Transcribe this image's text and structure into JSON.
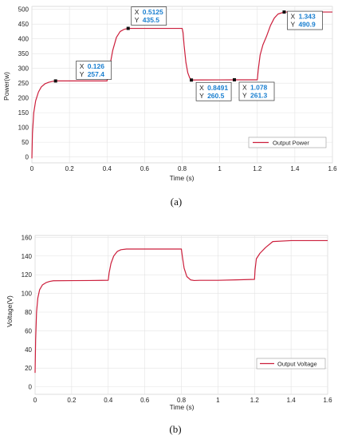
{
  "chart_data": [
    {
      "type": "line",
      "caption": "(a)",
      "xlabel": "Time (s)",
      "ylabel": "Power(w)",
      "xlim": [
        0,
        1.6
      ],
      "ylim": [
        -20,
        510
      ],
      "xticks": [
        "0",
        "0.2",
        "0.4",
        "0.6",
        "0.8",
        "1",
        "1.2",
        "1.4",
        "1.6"
      ],
      "yticks": [
        "0",
        "50",
        "100",
        "150",
        "200",
        "250",
        "300",
        "350",
        "400",
        "450",
        "500"
      ],
      "legend": "bottom-right",
      "grid": true,
      "series": [
        {
          "name": "Output Power",
          "color": "#cc1f3c",
          "x": [
            0,
            0.003,
            0.01,
            0.02,
            0.035,
            0.05,
            0.07,
            0.09,
            0.11,
            0.126,
            0.2,
            0.3,
            0.4,
            0.41,
            0.43,
            0.45,
            0.47,
            0.49,
            0.5125,
            0.6,
            0.7,
            0.8,
            0.805,
            0.81,
            0.82,
            0.83,
            0.84,
            0.8491,
            0.9,
            1.0,
            1.078,
            1.15,
            1.2,
            1.205,
            1.215,
            1.23,
            1.25,
            1.27,
            1.29,
            1.31,
            1.343,
            1.4,
            1.5,
            1.6
          ],
          "y": [
            -5,
            80,
            150,
            190,
            220,
            237,
            248,
            253,
            256,
            257.4,
            257.4,
            257.4,
            257.4,
            290,
            360,
            405,
            425,
            432,
            435.5,
            435.5,
            435.5,
            435.5,
            420,
            380,
            320,
            285,
            268,
            260.5,
            260.8,
            261,
            261.3,
            261.3,
            261.3,
            295,
            345,
            380,
            410,
            445,
            470,
            484,
            490.9,
            490.9,
            490.9,
            490.9
          ]
        }
      ],
      "datatips": [
        {
          "x": "0.126",
          "y": "257.4"
        },
        {
          "x": "0.5125",
          "y": "435.5"
        },
        {
          "x": "0.8491",
          "y": "260.5"
        },
        {
          "x": "1.078",
          "y": "261.3"
        },
        {
          "x": "1.343",
          "y": "490.9"
        }
      ]
    },
    {
      "type": "line",
      "caption": "(b)",
      "xlabel": "Time (s)",
      "ylabel": "Voltage(V)",
      "xlim": [
        0,
        1.6
      ],
      "ylim": [
        -8,
        162
      ],
      "xticks": [
        "0",
        "0.2",
        "0.4",
        "0.6",
        "0.8",
        "1",
        "1.2",
        "1.4",
        "1.6"
      ],
      "yticks": [
        "0",
        "20",
        "40",
        "60",
        "80",
        "100",
        "120",
        "140",
        "160"
      ],
      "legend": "right",
      "grid": true,
      "series": [
        {
          "name": "Output Voltage",
          "color": "#cc1f3c",
          "x": [
            0,
            0.003,
            0.008,
            0.015,
            0.025,
            0.04,
            0.06,
            0.08,
            0.1,
            0.2,
            0.3,
            0.4,
            0.405,
            0.415,
            0.43,
            0.45,
            0.47,
            0.5,
            0.6,
            0.7,
            0.8,
            0.805,
            0.815,
            0.83,
            0.85,
            0.87,
            0.9,
            1.0,
            1.1,
            1.2,
            1.203,
            1.21,
            1.23,
            1.26,
            1.3,
            1.4,
            1.5,
            1.6
          ],
          "y": [
            15,
            50,
            80,
            95,
            104,
            109,
            111.5,
            112.8,
            113.5,
            113.7,
            113.8,
            114,
            122,
            132,
            140,
            145,
            146.8,
            147.5,
            147.5,
            147.5,
            147.5,
            140,
            127,
            118,
            114.5,
            113.8,
            114,
            114,
            114.5,
            115,
            125,
            137,
            143,
            149,
            155.5,
            156.5,
            156.5,
            156.5
          ]
        }
      ]
    }
  ]
}
